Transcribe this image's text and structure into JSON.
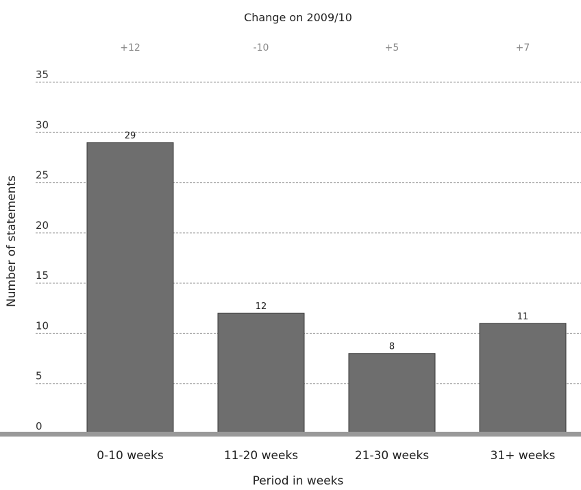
{
  "chart_data": {
    "type": "bar",
    "title": "Change on 2009/10",
    "xlabel": "Period in weeks",
    "ylabel": "Number of statements",
    "ylim": [
      0,
      35
    ],
    "y_ticks": [
      0,
      5,
      10,
      15,
      20,
      25,
      30,
      35
    ],
    "categories": [
      "0-10 weeks",
      "11-20 weeks",
      "21-30 weeks",
      "31+ weeks"
    ],
    "values": [
      29,
      12,
      8,
      11
    ],
    "data_labels": [
      "29",
      "12",
      "8",
      "11"
    ],
    "changes": [
      "+12",
      "-10",
      "+5",
      "+7"
    ],
    "grid": true,
    "legend": "none",
    "colors": {
      "bar": "#6e6e6e",
      "bar_edge": "#3a3a3a",
      "grid": "#9a9a9a",
      "baseline": "#999999"
    }
  }
}
